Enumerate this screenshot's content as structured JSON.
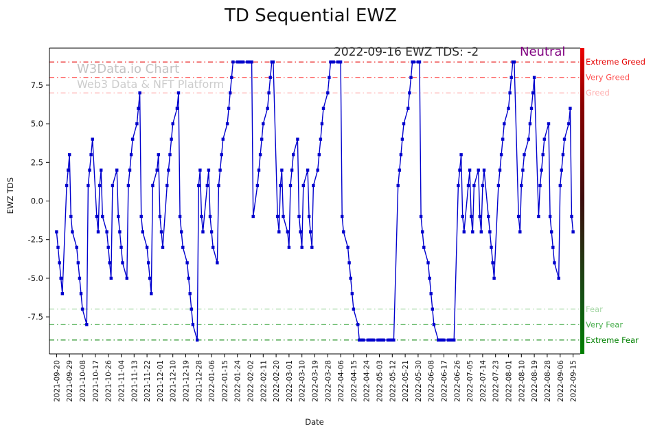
{
  "title": "TD Sequential EWZ",
  "watermark": {
    "line1": "W3Data.io Chart",
    "line2": "Web3 Data & NFT Platform"
  },
  "annotation": {
    "text": "2022-09-16 EWZ TDS: -2",
    "status": "Neutral",
    "status_color": "#800080"
  },
  "chart_data": {
    "type": "line",
    "title": "TD Sequential EWZ",
    "xlabel": "Date",
    "ylabel": "EWZ TDS",
    "start_date": "2021-09-20",
    "end_date": "2022-09-15",
    "frequency": "weekdays",
    "line_color": "#0000cd",
    "marker": "square",
    "grid": false,
    "ylim": [
      -9.9,
      9.9
    ],
    "y_ticks": [
      -7.5,
      -5.0,
      -2.5,
      0.0,
      2.5,
      5.0,
      7.5
    ],
    "x_tick_labels": [
      "2021-09-20",
      "2021-09-29",
      "2021-10-08",
      "2021-10-17",
      "2021-10-26",
      "2021-11-04",
      "2021-11-13",
      "2021-11-22",
      "2021-12-01",
      "2021-12-10",
      "2021-12-19",
      "2021-12-28",
      "2022-01-06",
      "2022-01-15",
      "2022-01-24",
      "2022-02-02",
      "2022-02-11",
      "2022-02-20",
      "2022-03-01",
      "2022-03-10",
      "2022-03-19",
      "2022-03-28",
      "2022-04-06",
      "2022-04-15",
      "2022-04-24",
      "2022-05-03",
      "2022-05-12",
      "2022-05-21",
      "2022-05-30",
      "2022-06-08",
      "2022-06-17",
      "2022-06-26",
      "2022-07-05",
      "2022-07-14",
      "2022-07-23",
      "2022-08-01",
      "2022-08-10",
      "2022-08-19",
      "2022-08-28",
      "2022-09-06",
      "2022-09-15"
    ],
    "x_tick_step_days": 9,
    "values": [
      -2,
      -3,
      -4,
      -5,
      -6,
      1,
      2,
      3,
      -1,
      -2,
      -3,
      -4,
      -5,
      -6,
      -7,
      -8,
      1,
      2,
      3,
      4,
      -1,
      -2,
      1,
      2,
      -1,
      -2,
      -3,
      -4,
      -5,
      1,
      2,
      -1,
      -2,
      -3,
      -4,
      -5,
      1,
      2,
      3,
      4,
      5,
      6,
      7,
      -1,
      -2,
      -3,
      -4,
      -5,
      -6,
      1,
      2,
      3,
      -1,
      -2,
      -3,
      1,
      2,
      3,
      4,
      5,
      6,
      7,
      -1,
      -2,
      -3,
      -4,
      -5,
      -6,
      -7,
      -8,
      -9,
      1,
      2,
      -1,
      -2,
      1,
      2,
      -1,
      -2,
      -3,
      -4,
      1,
      2,
      3,
      4,
      5,
      6,
      7,
      8,
      9,
      9,
      9,
      9,
      9,
      9,
      9,
      9,
      9,
      9,
      -1,
      1,
      2,
      3,
      4,
      5,
      6,
      7,
      8,
      9,
      9,
      -1,
      -2,
      1,
      2,
      -1,
      -2,
      -3,
      1,
      2,
      3,
      4,
      -1,
      -2,
      -3,
      1,
      2,
      -1,
      -2,
      -3,
      1,
      2,
      3,
      4,
      5,
      6,
      7,
      8,
      9,
      9,
      9,
      9,
      9,
      9,
      -1,
      -2,
      -3,
      -4,
      -5,
      -6,
      -7,
      -8,
      -9,
      -9,
      -9,
      -9,
      -9,
      -9,
      -9,
      -9,
      -9,
      -9,
      -9,
      -9,
      -9,
      -9,
      -9,
      -9,
      -9,
      -9,
      -9,
      1,
      2,
      3,
      4,
      5,
      6,
      7,
      8,
      9,
      9,
      9,
      9,
      -1,
      -2,
      -3,
      -4,
      -5,
      -6,
      -7,
      -8,
      -9,
      -9,
      -9,
      -9,
      -9,
      -9,
      -9,
      -9,
      -9,
      -9,
      1,
      2,
      3,
      -1,
      -2,
      1,
      2,
      -1,
      -2,
      1,
      2,
      -1,
      -2,
      1,
      2,
      -1,
      -2,
      -3,
      -4,
      -5,
      1,
      2,
      3,
      4,
      5,
      6,
      7,
      8,
      9,
      9,
      -1,
      -2,
      1,
      2,
      3,
      4,
      5,
      6,
      7,
      8,
      -1,
      1,
      2,
      3,
      4,
      5,
      -1,
      -2,
      -3,
      -4,
      -5,
      1,
      2,
      3,
      4,
      5,
      6,
      -1,
      -2
    ],
    "thresholds": [
      {
        "value": 9,
        "label": "Extreme Greed",
        "color": "#e60000"
      },
      {
        "value": 8,
        "label": "Very Greed",
        "color": "#ff5050"
      },
      {
        "value": 7,
        "label": "Greed",
        "color": "#ffadad"
      },
      {
        "value": -7,
        "label": "Fear",
        "color": "#a8d8a8"
      },
      {
        "value": -8,
        "label": "Very Fear",
        "color": "#4caf50"
      },
      {
        "value": -9,
        "label": "Extreme Fear",
        "color": "#008000"
      }
    ]
  }
}
